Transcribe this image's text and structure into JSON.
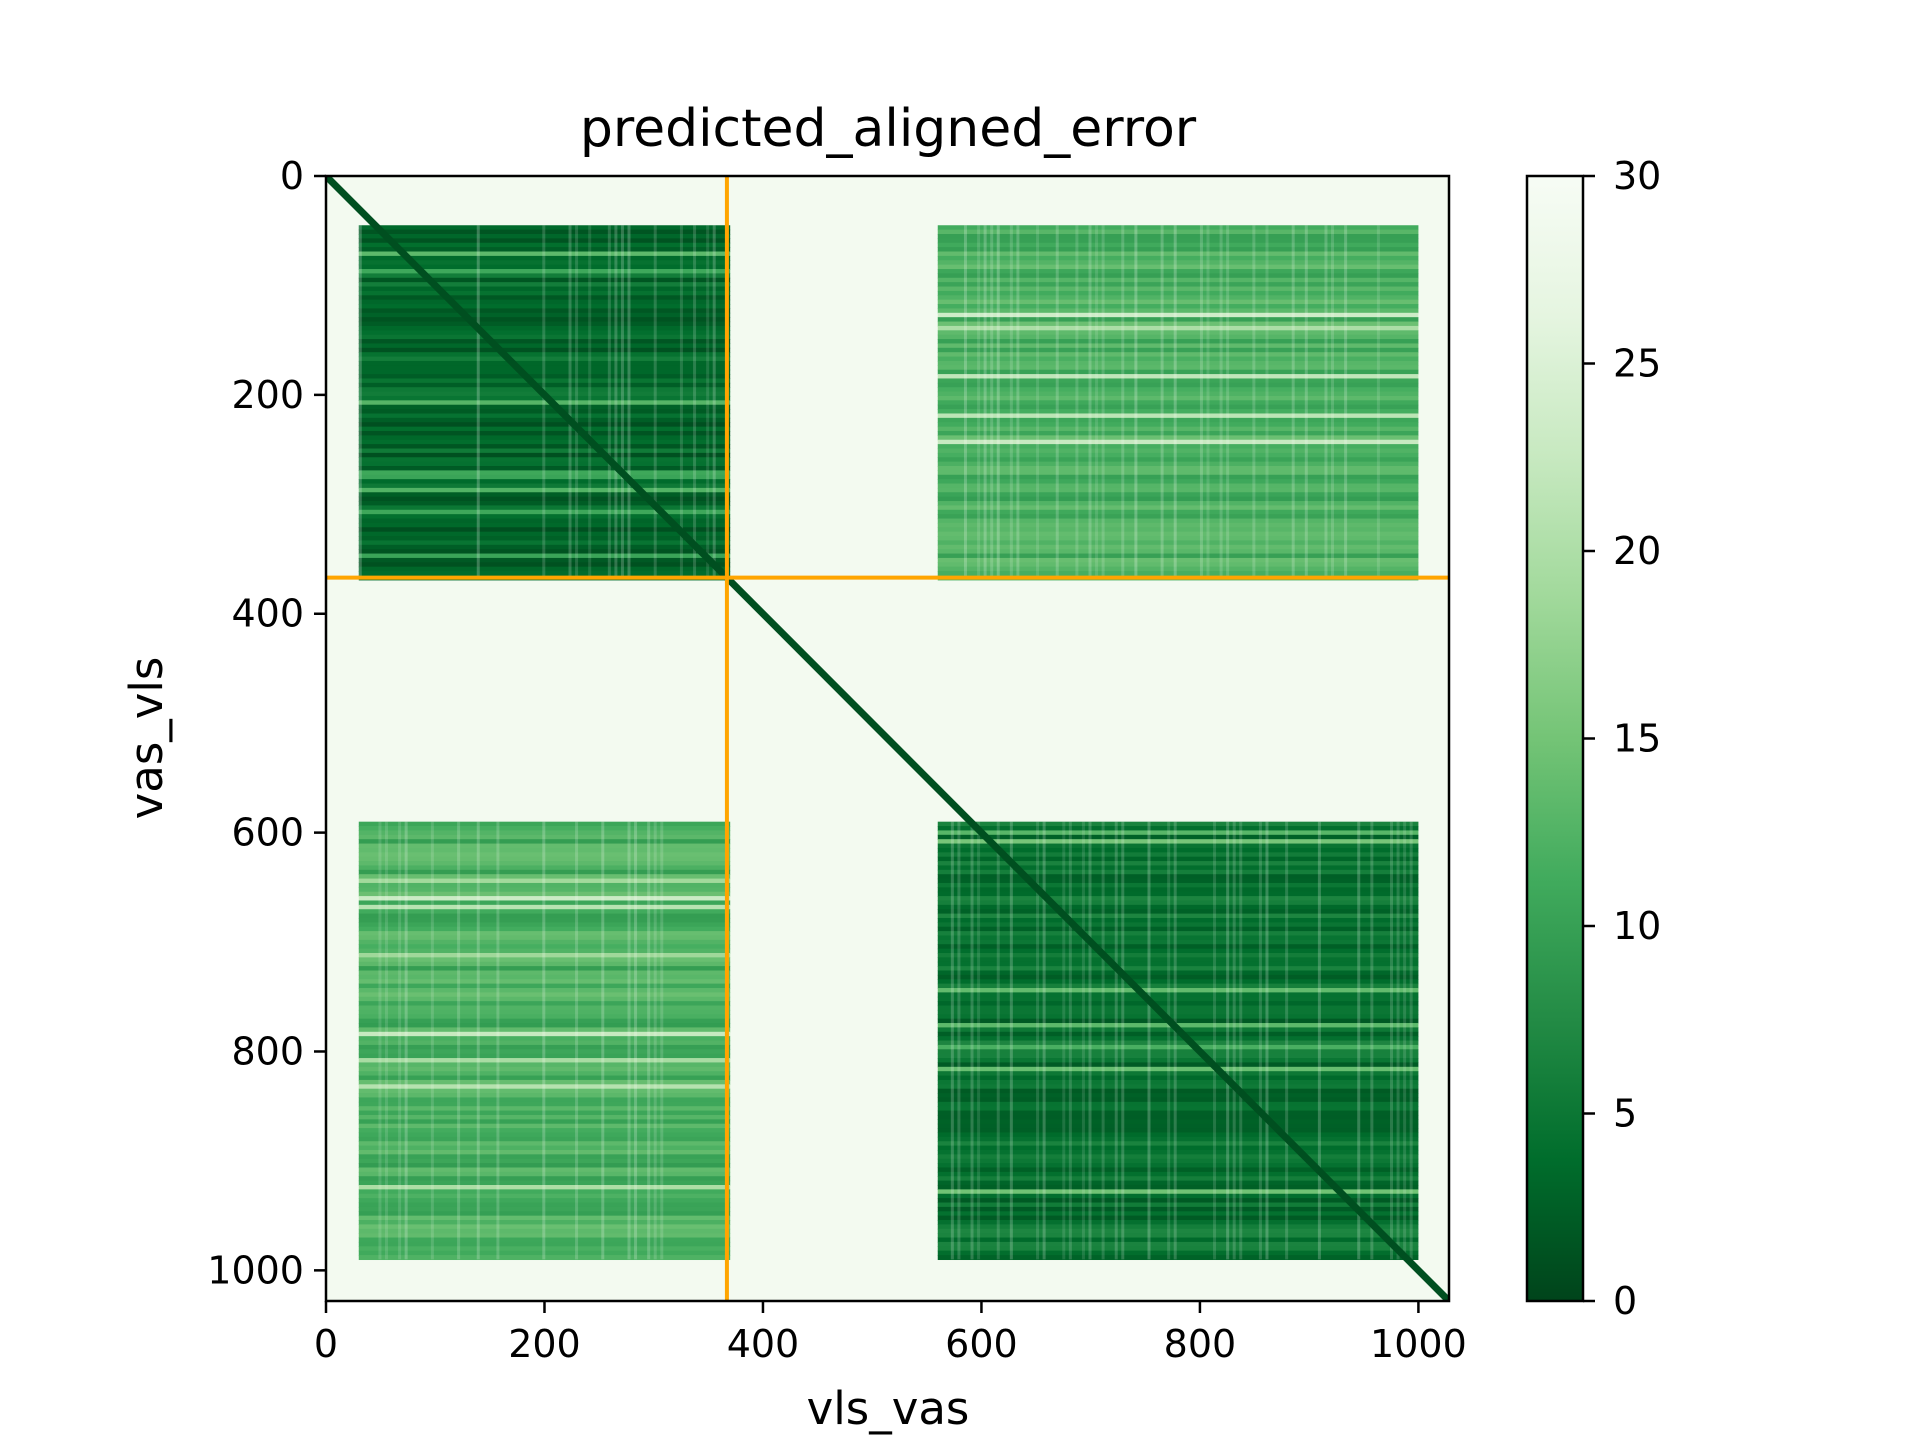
{
  "chart_data": {
    "type": "heatmap",
    "title": "predicted_aligned_error",
    "xlabel": "vls_vas",
    "ylabel": "vas_vls",
    "xlim": [
      0,
      1028
    ],
    "ylim": [
      1028,
      0
    ],
    "x_ticks": [
      "0",
      "200",
      "400",
      "600",
      "800",
      "1000"
    ],
    "y_ticks": [
      "0",
      "200",
      "400",
      "600",
      "800",
      "1000"
    ],
    "x_tick_values": [
      0,
      200,
      400,
      600,
      800,
      1000
    ],
    "y_tick_values": [
      0,
      200,
      400,
      600,
      800,
      1000
    ],
    "colormap": "Greens_r",
    "color_low": "#00441b",
    "color_high": "#f7fcf5",
    "colorbar": {
      "range": [
        0,
        30
      ],
      "ticks": [
        "0",
        "5",
        "10",
        "15",
        "20",
        "25",
        "30"
      ],
      "tick_values": [
        0,
        5,
        10,
        15,
        20,
        25,
        30
      ]
    },
    "chain_boundary": 367,
    "boundary_color": "#ffa500",
    "grid": false,
    "regions": [
      {
        "name": "block_A_A",
        "x": [
          30,
          370
        ],
        "y": [
          45,
          367
        ],
        "value": 3.5
      },
      {
        "name": "block_B_B",
        "x": [
          560,
          1000
        ],
        "y": [
          590,
          990
        ],
        "value": 4.5
      },
      {
        "name": "block_A_B",
        "x": [
          560,
          1000
        ],
        "y": [
          45,
          367
        ],
        "value": 12
      },
      {
        "name": "block_B_A",
        "x": [
          30,
          370
        ],
        "y": [
          590,
          990
        ],
        "value": 12
      },
      {
        "name": "background",
        "x": [
          0,
          1028
        ],
        "y": [
          0,
          1028
        ],
        "value": 29
      }
    ],
    "diagonal_value": 1
  }
}
